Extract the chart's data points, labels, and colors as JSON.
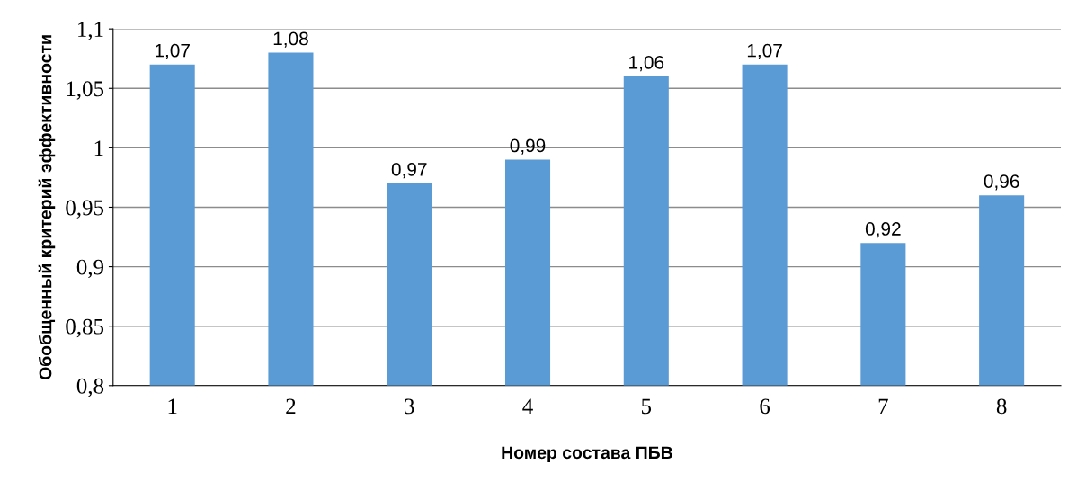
{
  "chart_data": {
    "type": "bar",
    "xlabel": "Номер состава ПБВ",
    "ylabel": "Обобщенный критерий эффективности",
    "categories": [
      "1",
      "2",
      "3",
      "4",
      "5",
      "6",
      "7",
      "8"
    ],
    "values": [
      1.07,
      1.08,
      0.97,
      0.99,
      1.06,
      1.07,
      0.92,
      0.96
    ],
    "value_labels": [
      "1,07",
      "1,08",
      "0,97",
      "0,99",
      "1,06",
      "1,07",
      "0,92",
      "0,96"
    ],
    "color": "#5b9bd5",
    "ylim": [
      0.8,
      1.1
    ],
    "yticks": [
      {
        "value": 0.8,
        "label": "0,8"
      },
      {
        "value": 0.85,
        "label": "0,85"
      },
      {
        "value": 0.9,
        "label": "0,9"
      },
      {
        "value": 0.95,
        "label": "0,95"
      },
      {
        "value": 1.0,
        "label": "1"
      },
      {
        "value": 1.05,
        "label": "1,05"
      },
      {
        "value": 1.1,
        "label": "1,1"
      }
    ],
    "grid": "y"
  }
}
